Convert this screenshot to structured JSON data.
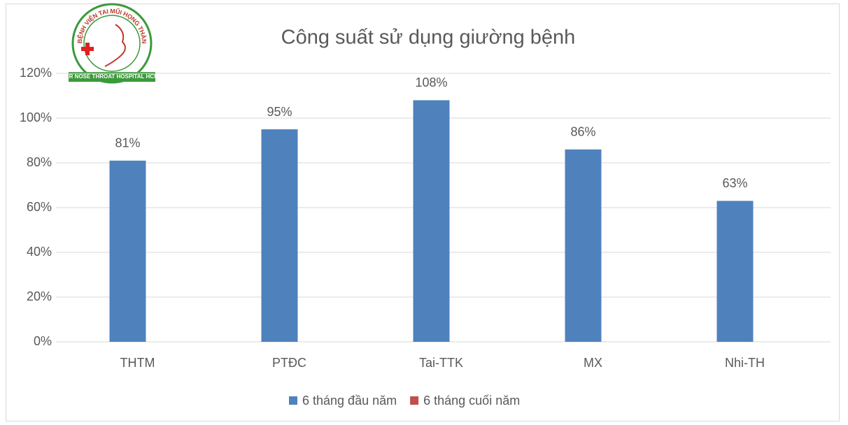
{
  "logo": {
    "ring_text": "BỆNH VIỆN TAI MŨI HỌNG THÀNH PHỐ HỒ CHÍ MINH",
    "banner_text": "EAR NOSE THROAT HOSPITAL HCMC"
  },
  "chart_data": {
    "type": "bar",
    "title": "Công suất sử dụng giường bệnh",
    "categories": [
      "THTM",
      "PTĐC",
      "Tai-TTK",
      "MX",
      "Nhi-TH"
    ],
    "series": [
      {
        "name": "6 tháng đầu năm",
        "color": "#4f81bd",
        "values": [
          81,
          95,
          108,
          86,
          63
        ],
        "value_labels": [
          "81%",
          "95%",
          "108%",
          "86%",
          "63%"
        ]
      },
      {
        "name": "6 tháng cuối năm",
        "color": "#c0504d",
        "values": [
          null,
          null,
          null,
          null,
          null
        ]
      }
    ],
    "ylim": [
      0,
      120
    ],
    "yticks": [
      {
        "value": 0,
        "label": "0%"
      },
      {
        "value": 20,
        "label": "20%"
      },
      {
        "value": 40,
        "label": "40%"
      },
      {
        "value": 60,
        "label": "60%"
      },
      {
        "value": 80,
        "label": "80%"
      },
      {
        "value": 100,
        "label": "100%"
      },
      {
        "value": 120,
        "label": "120%"
      }
    ],
    "grid": true,
    "legend": "bottom"
  }
}
